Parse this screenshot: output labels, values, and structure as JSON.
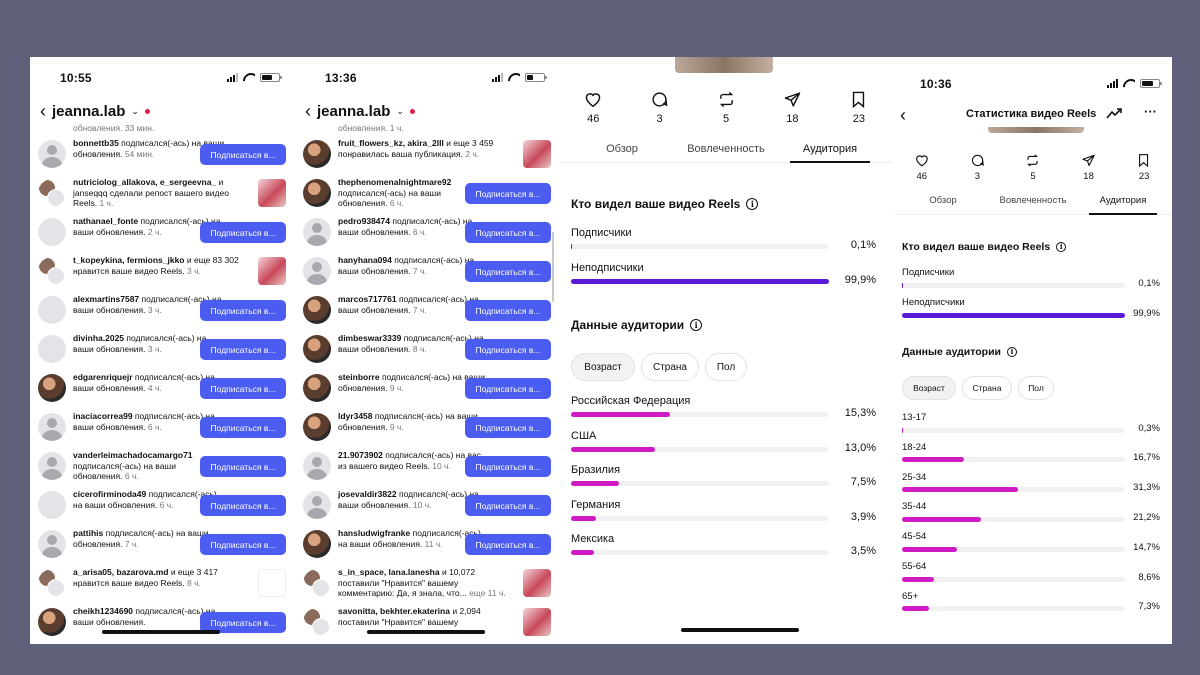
{
  "panel1": {
    "time": "10:55",
    "username": "jeanna.lab",
    "top_partial": "обновления. 33 мин.",
    "rows": [
      {
        "user": "bonnettb35",
        "text": " подписался(-ась) на ваши обновления.",
        "time": "54 мин.",
        "action": "button",
        "avatar": "person"
      },
      {
        "user": "nutriciolog_allakova, e_sergeevna_",
        "text": " и janseqqq сделали репост вашего видео Reels.",
        "time": "1 ч.",
        "action": "thumb",
        "avatar": "dbl"
      },
      {
        "user": "nathanael_fonte",
        "text": " подписался(-ась) на ваши обновления.",
        "time": "2 ч.",
        "action": "button",
        "avatar": "blank"
      },
      {
        "user": "t_kopeykina, fermions_jkko",
        "text": " и еще 83 302 нравится ваше видео Reels.",
        "time": "3 ч.",
        "action": "thumb",
        "avatar": "dbl"
      },
      {
        "user": "alexmartins7587",
        "text": " подписался(-ась) на ваши обновления.",
        "time": "3 ч.",
        "action": "button",
        "avatar": "blank"
      },
      {
        "user": "divinha.2025",
        "text": " подписался(-ась) на ваши обновления.",
        "time": "3 ч.",
        "action": "button",
        "avatar": "blank"
      },
      {
        "user": "edgarenriquejr",
        "text": " подписался(-ась) на ваши обновления.",
        "time": "4 ч.",
        "action": "button",
        "avatar": "pic"
      },
      {
        "user": "inaciacorrea99",
        "text": " подписался(-ась) на ваши обновления.",
        "time": "6 ч.",
        "action": "button",
        "avatar": "person"
      },
      {
        "user": "vanderleimachadocamargo71",
        "text": " подписался(-ась) на ваши обновления.",
        "time": "6 ч.",
        "action": "button",
        "avatar": "person"
      },
      {
        "user": "cicerofirminoda49",
        "text": " подписался(-ась) на ваши обновления.",
        "time": "6 ч.",
        "action": "button",
        "avatar": "blank"
      },
      {
        "user": "pattihis",
        "text": " подписался(-ась) на ваши обновления.",
        "time": "7 ч.",
        "action": "button",
        "avatar": "person"
      },
      {
        "user": "a_arisa05, bazarova.md",
        "text": " и еще 3 417 нравится ваше видео Reels.",
        "time": "8 ч.",
        "action": "blank",
        "avatar": "dbl"
      },
      {
        "user": "cheikh1234690",
        "text": " подписался(-ась) на ваши обновления.",
        "time": "",
        "action": "button",
        "avatar": "pic"
      }
    ],
    "button_label": "Подписаться в..."
  },
  "panel2": {
    "time": "13:36",
    "username": "jeanna.lab",
    "top_partial": "обновления. 1 ч.",
    "rows": [
      {
        "user": "fruit_flowers_kz, akira_2lll",
        "text": " и еще 3 459 понравилась ваша публикация.",
        "time": "2 ч.",
        "action": "thumb",
        "avatar": "pic"
      },
      {
        "user": "thephenomenalnightmare92",
        "text": " подписался(-ась) на ваши обновления.",
        "time": "6 ч.",
        "action": "button",
        "avatar": "pic"
      },
      {
        "user": "pedro938474",
        "text": " подписался(-ась) на ваши обновления.",
        "time": "6 ч.",
        "action": "button",
        "avatar": "person"
      },
      {
        "user": "hanyhana094",
        "text": " подписался(-ась) на ваши обновления.",
        "time": "7 ч.",
        "action": "button",
        "avatar": "person"
      },
      {
        "user": "marcos717761",
        "text": " подписался(-ась) на ваши обновления.",
        "time": "7 ч.",
        "action": "button",
        "avatar": "pic"
      },
      {
        "user": "dimbeswar3339",
        "text": " подписался(-ась) на ваши обновления.",
        "time": "8 ч.",
        "action": "button",
        "avatar": "pic"
      },
      {
        "user": "steinborre",
        "text": " подписался(-ась) на ваши обновления.",
        "time": "9 ч.",
        "action": "button",
        "avatar": "pic"
      },
      {
        "user": "ldyr3458",
        "text": " подписался(-ась) на ваши обновления.",
        "time": "9 ч.",
        "action": "button",
        "avatar": "pic"
      },
      {
        "user": "21.9073902",
        "text": " подписался(-ась) на вас из вашего видео Reels.",
        "time": "10 ч.",
        "action": "button",
        "avatar": "person"
      },
      {
        "user": "josevaldir3822",
        "text": " подписался(-ась) на ваши обновления.",
        "time": "10 ч.",
        "action": "button",
        "avatar": "person"
      },
      {
        "user": "hansludwigfranke",
        "text": " подписался(-ась) на ваши обновления.",
        "time": "11 ч.",
        "action": "button",
        "avatar": "pic"
      },
      {
        "user": "s_in_space, lana.lanesha",
        "text": " и 10,072 поставили \"Нравится\" вашему комментарию: Да, я знала, что...",
        "time": "еще 11 ч.",
        "action": "thumb",
        "avatar": "dbl"
      },
      {
        "user": "savonitta, bekhter.ekaterina",
        "text": " и 2,094 поставили \"Нравится\" вашему",
        "time": "",
        "action": "thumb",
        "avatar": "dbl"
      }
    ],
    "button_label": "Подписаться в..."
  },
  "stats": {
    "metrics": [
      "46",
      "3",
      "5",
      "18",
      "23"
    ],
    "tabs": [
      "Обзор",
      "Вовлеченность",
      "Аудитория"
    ],
    "who_title": "Кто видел ваше видео Reels",
    "who": [
      {
        "label": "Подписчики",
        "pct": "0,1%",
        "value": 0.1
      },
      {
        "label": "Неподписчики",
        "pct": "99,9%",
        "value": 99.9
      }
    ],
    "audience_title": "Данные аудитории",
    "chips": [
      "Возраст",
      "Страна",
      "Пол"
    ],
    "countries": [
      {
        "label": "Российская Федерация",
        "pct": "15,3%",
        "value": 15.3
      },
      {
        "label": "США",
        "pct": "13,0%",
        "value": 13.0
      },
      {
        "label": "Бразилия",
        "pct": "7,5%",
        "value": 7.5
      },
      {
        "label": "Германия",
        "pct": "3,9%",
        "value": 3.9
      },
      {
        "label": "Мексика",
        "pct": "3,5%",
        "value": 3.5
      }
    ]
  },
  "panel4": {
    "time": "10:36",
    "title": "Статистика видео Reels",
    "metrics": [
      "46",
      "3",
      "5",
      "18",
      "23"
    ],
    "tabs": [
      "Обзор",
      "Вовлеченность",
      "Аудитория"
    ],
    "who_title": "Кто видел ваше видео Reels",
    "who": [
      {
        "label": "Подписчики",
        "pct": "0,1%",
        "value": 0.1
      },
      {
        "label": "Неподписчики",
        "pct": "99,9%",
        "value": 99.9
      }
    ],
    "audience_title": "Данные аудитории",
    "chips": [
      "Возраст",
      "Страна",
      "Пол"
    ],
    "ages": [
      {
        "label": "13-17",
        "pct": "0,3%",
        "value": 0.3
      },
      {
        "label": "18-24",
        "pct": "16,7%",
        "value": 16.7
      },
      {
        "label": "25-34",
        "pct": "31,3%",
        "value": 31.3
      },
      {
        "label": "35-44",
        "pct": "21,2%",
        "value": 21.2
      },
      {
        "label": "45-54",
        "pct": "14,7%",
        "value": 14.7
      },
      {
        "label": "55-64",
        "pct": "8,6%",
        "value": 8.6
      },
      {
        "label": "65+",
        "pct": "7,3%",
        "value": 7.3
      }
    ]
  },
  "colors": {
    "button": "#4a5df0",
    "who_bar": "#5a19d6",
    "audience_bar": "#d01bc5"
  },
  "icons": [
    "back-arrow-icon",
    "chevron-down-icon",
    "heart-icon",
    "comment-icon",
    "repost-icon",
    "send-icon",
    "bookmark-icon",
    "info-icon",
    "trend-icon",
    "more-icon"
  ]
}
